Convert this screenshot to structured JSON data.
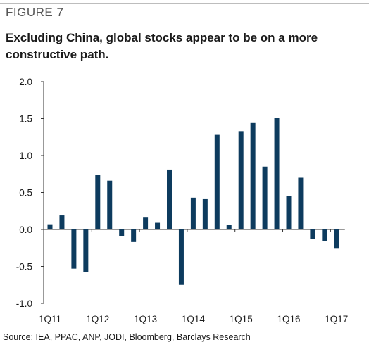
{
  "figure_label": "FIGURE 7",
  "title": "Excluding China, global stocks appear to be on a more constructive path.",
  "source": "Source: IEA, PPAC, ANP, JODI, Bloomberg, Barclays Research",
  "colors": {
    "bar": "#0d3b5e",
    "axis": "#333333",
    "topline": "#bdbdbd"
  },
  "chart_data": {
    "type": "bar",
    "title": "",
    "xlabel": "",
    "ylabel": "",
    "ylim": [
      -1.0,
      2.0
    ],
    "yticks": [
      "2.0",
      "1.5",
      "1.0",
      "0.5",
      "0.0",
      "-0.5",
      "-1.0"
    ],
    "ytick_values": [
      2.0,
      1.5,
      1.0,
      0.5,
      0.0,
      -0.5,
      -1.0
    ],
    "xtick_labels": [
      "1Q11",
      "1Q12",
      "1Q13",
      "1Q14",
      "1Q15",
      "1Q16",
      "1Q17"
    ],
    "xtick_category_index": [
      0,
      4,
      8,
      12,
      16,
      20,
      24
    ],
    "grid": false,
    "legend": "none",
    "categories": [
      "1Q11",
      "2Q11",
      "3Q11",
      "4Q11",
      "1Q12",
      "2Q12",
      "3Q12",
      "4Q12",
      "1Q13",
      "2Q13",
      "3Q13",
      "4Q13",
      "1Q14",
      "2Q14",
      "3Q14",
      "4Q14",
      "1Q15",
      "2Q15",
      "3Q15",
      "4Q15",
      "1Q16",
      "2Q16",
      "3Q16",
      "4Q16",
      "1Q17"
    ],
    "values": [
      0.07,
      0.19,
      -0.53,
      -0.58,
      0.74,
      0.66,
      -0.09,
      -0.17,
      0.16,
      0.09,
      0.81,
      -0.75,
      0.43,
      0.41,
      1.28,
      0.06,
      1.33,
      1.44,
      0.85,
      1.51,
      0.45,
      0.7,
      -0.13,
      -0.16,
      -0.26
    ]
  }
}
